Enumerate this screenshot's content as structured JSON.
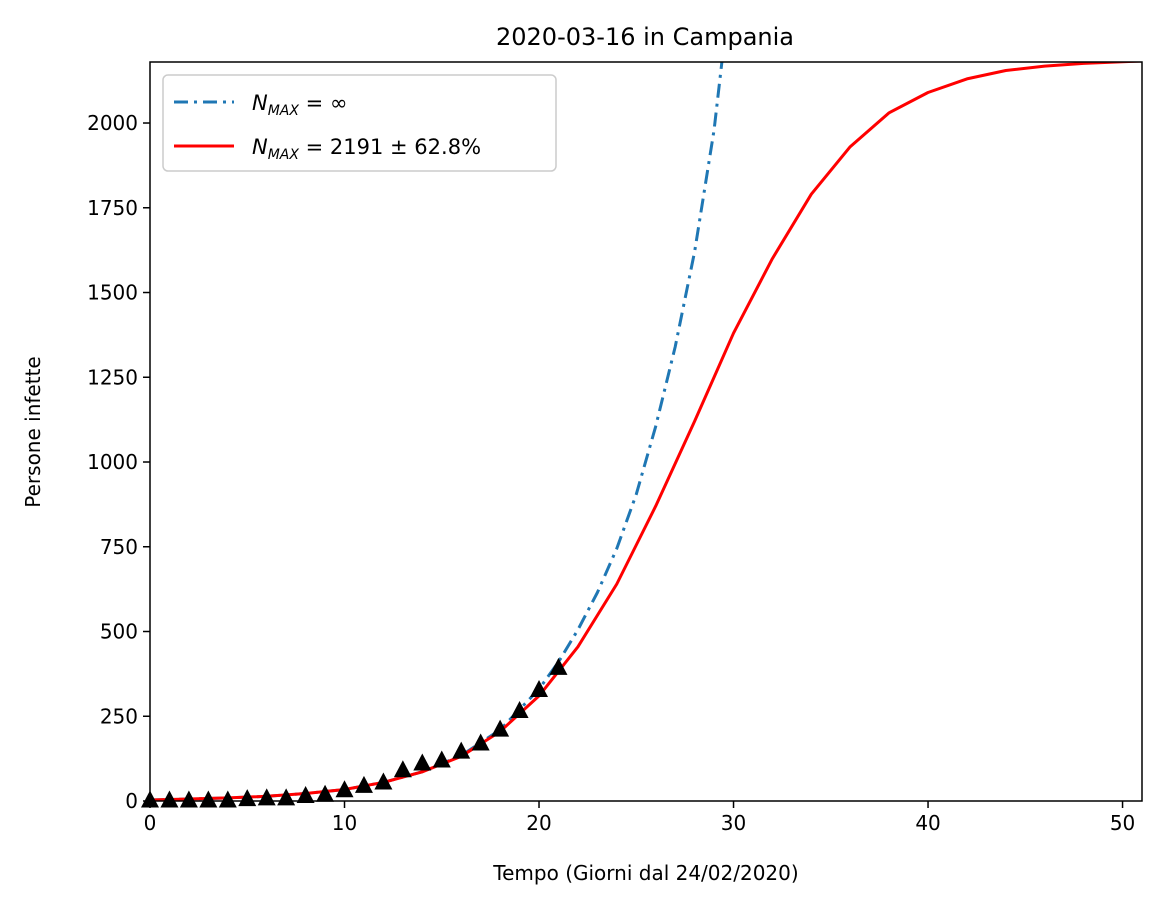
{
  "chart_data": {
    "type": "line",
    "title": "2020-03-16 in Campania",
    "xlabel": "Tempo (Giorni dal 24/02/2020)",
    "ylabel": "Persone infette",
    "xlim": [
      0,
      51
    ],
    "ylim": [
      0,
      2180
    ],
    "xticks": [
      0,
      10,
      20,
      30,
      40,
      50
    ],
    "yticks": [
      0,
      250,
      500,
      750,
      1000,
      1250,
      1500,
      1750,
      2000
    ],
    "grid": false,
    "legend_position": "top-left",
    "series": [
      {
        "name": "N_MAX = ∞",
        "legend_main": "N",
        "legend_sub": "MAX",
        "legend_rest": " = ∞",
        "style": "dashdot",
        "color": "#1f77b4",
        "x": [
          0,
          2,
          4,
          6,
          8,
          10,
          12,
          14,
          16,
          18,
          20,
          21,
          22,
          23,
          24,
          25,
          26,
          27,
          28,
          29,
          29.4
        ],
        "y": [
          3,
          6,
          9,
          14,
          22,
          34,
          55,
          86,
          134,
          210,
          330,
          410,
          505,
          615,
          745,
          905,
          1105,
          1340,
          1620,
          1980,
          2180
        ]
      },
      {
        "name": "N_MAX = 2191 ± 62.8%",
        "legend_main": "N",
        "legend_sub": "MAX",
        "legend_rest": " = 2191 ± 62.8%",
        "style": "solid",
        "color": "#ff0000",
        "x": [
          0,
          2,
          4,
          6,
          8,
          10,
          12,
          14,
          16,
          18,
          20,
          22,
          24,
          26,
          28,
          30,
          32,
          34,
          36,
          38,
          40,
          42,
          44,
          46,
          48,
          50,
          51
        ],
        "y": [
          3,
          6,
          9,
          14,
          22,
          34,
          55,
          86,
          132,
          205,
          310,
          455,
          640,
          870,
          1120,
          1380,
          1600,
          1790,
          1930,
          2030,
          2090,
          2130,
          2155,
          2168,
          2176,
          2181,
          2183
        ]
      },
      {
        "name": "data",
        "style": "markers",
        "marker": "triangle",
        "color": "#000000",
        "x": [
          0,
          1,
          2,
          3,
          4,
          5,
          6,
          7,
          8,
          9,
          10,
          11,
          12,
          13,
          14,
          15,
          16,
          17,
          18,
          19,
          20,
          21
        ],
        "y": [
          0,
          0,
          0,
          0,
          0,
          4,
          6,
          6,
          13,
          17,
          30,
          43,
          53,
          89,
          109,
          118,
          144,
          168,
          209,
          264,
          326,
          391
        ]
      }
    ]
  }
}
